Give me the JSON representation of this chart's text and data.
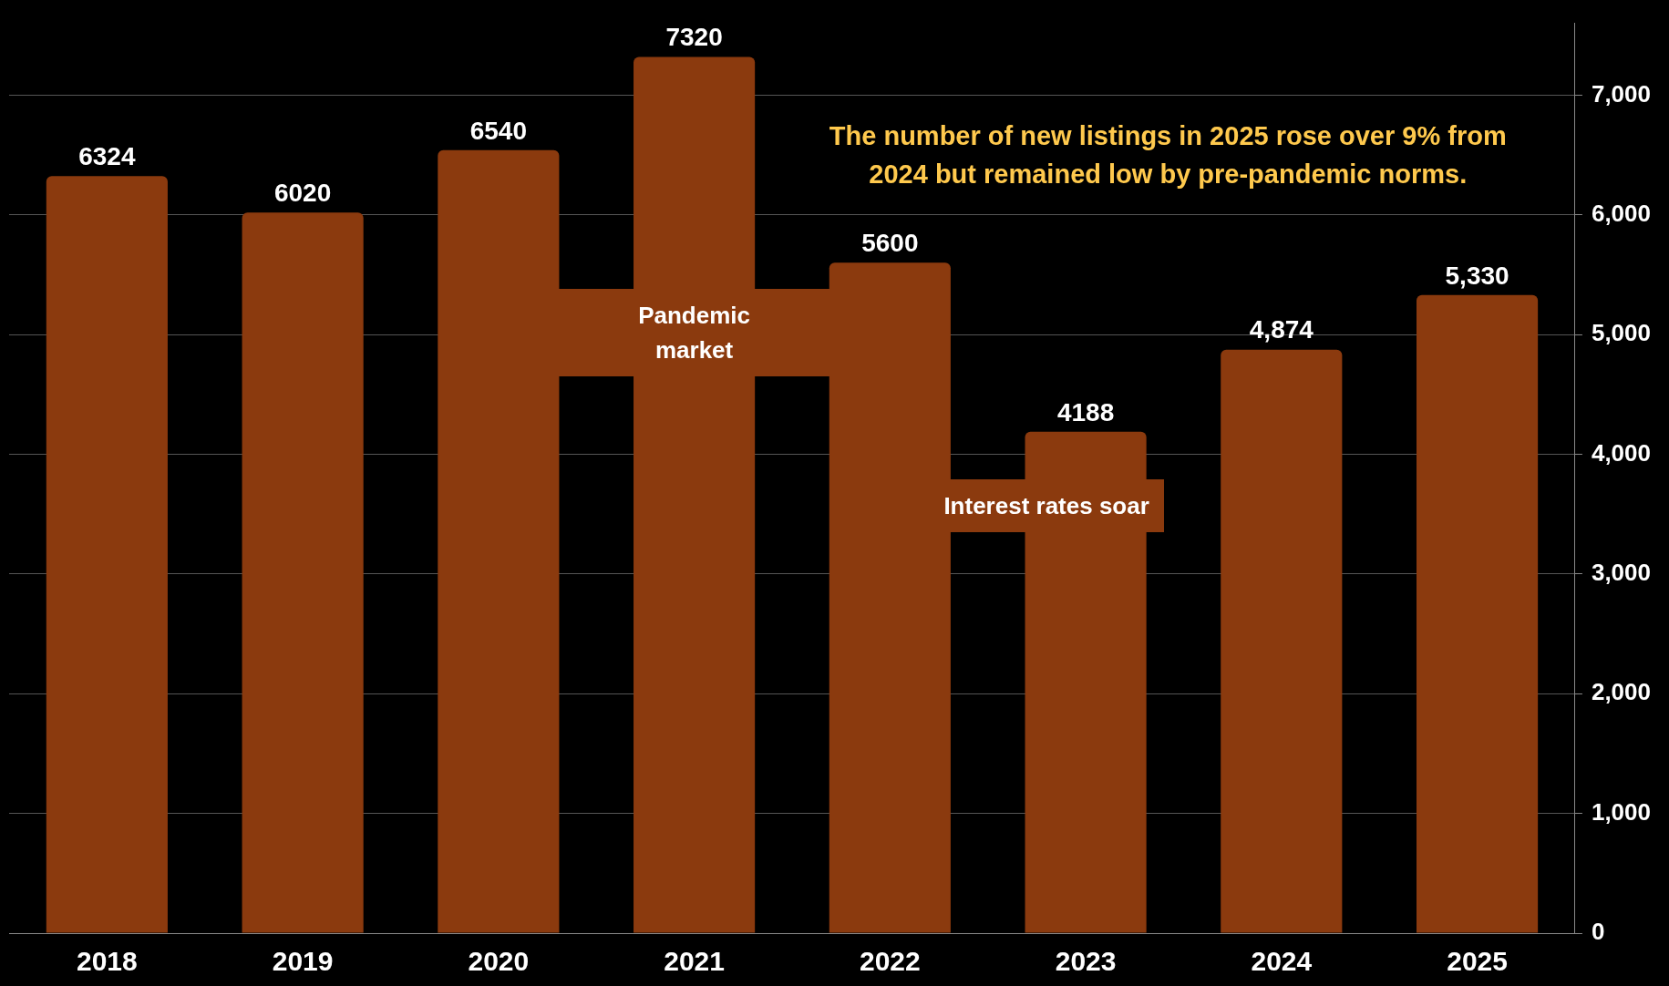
{
  "chart_data": {
    "type": "bar",
    "categories": [
      "2018",
      "2019",
      "2020",
      "2021",
      "2022",
      "2023",
      "2024",
      "2025"
    ],
    "values": [
      6324,
      6020,
      6540,
      7320,
      5600,
      4188,
      4874,
      5330
    ],
    "value_labels": [
      "6324",
      "6020",
      "6540",
      "7320",
      "5600",
      "4188",
      "4,874",
      "5,330"
    ],
    "color": "#8b3a0e",
    "ylim": [
      0,
      7600
    ],
    "yticks": [
      {
        "value": 0,
        "label": "0"
      },
      {
        "value": 1000,
        "label": "1,000"
      },
      {
        "value": 2000,
        "label": "2,000"
      },
      {
        "value": 3000,
        "label": "3,000"
      },
      {
        "value": 4000,
        "label": "4,000"
      },
      {
        "value": 5000,
        "label": "5,000"
      },
      {
        "value": 6000,
        "label": "6,000"
      },
      {
        "value": 7000,
        "label": "7,000"
      }
    ],
    "grid": "y",
    "annotations": [
      "Pandemic\nmarket",
      "Interest rates soar",
      "The number of new listings in 2025 rose over 9% from\n2024 but remained low by pre-pandemic norms."
    ]
  }
}
